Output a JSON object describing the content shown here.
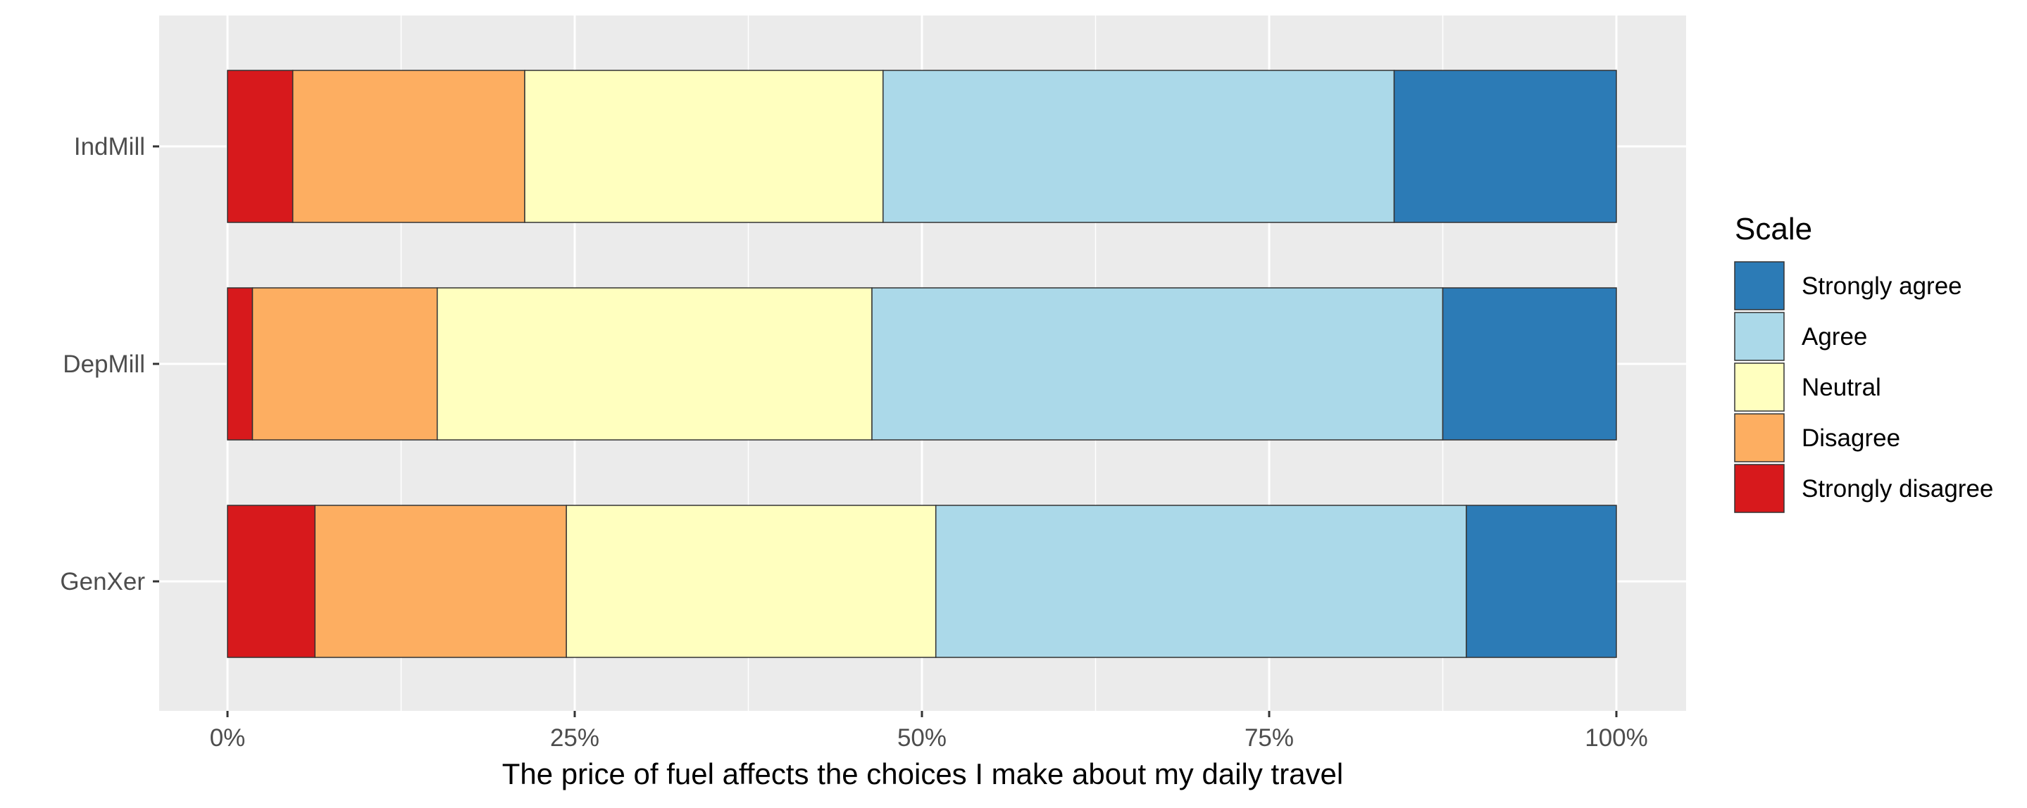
{
  "chart_data": {
    "type": "bar",
    "orientation": "horizontal",
    "stacked": true,
    "normalized_percent": true,
    "categories": [
      "IndMill",
      "DepMill",
      "GenXer"
    ],
    "series": [
      {
        "name": "Strongly disagree",
        "color": "#d7191c",
        "values": [
          4.7,
          1.8,
          6.3
        ]
      },
      {
        "name": "Disagree",
        "color": "#fdae61",
        "values": [
          16.7,
          13.3,
          18.1
        ]
      },
      {
        "name": "Neutral",
        "color": "#ffffbf",
        "values": [
          25.8,
          31.3,
          26.6
        ]
      },
      {
        "name": "Agree",
        "color": "#abd9e9",
        "values": [
          36.8,
          41.1,
          38.2
        ]
      },
      {
        "name": "Strongly agree",
        "color": "#2c7bb6",
        "values": [
          16.0,
          12.5,
          10.8
        ]
      }
    ],
    "xlabel": "The price of fuel affects the choices I make about my daily travel",
    "ylabel": "",
    "xlim": [
      0,
      100
    ],
    "x_ticks": [
      "0%",
      "25%",
      "50%",
      "75%",
      "100%"
    ],
    "legend": {
      "title": "Scale",
      "position": "right",
      "entries": [
        "Strongly agree",
        "Agree",
        "Neutral",
        "Disagree",
        "Strongly disagree"
      ]
    },
    "grid": true,
    "panel_background": "#ebebeb"
  }
}
